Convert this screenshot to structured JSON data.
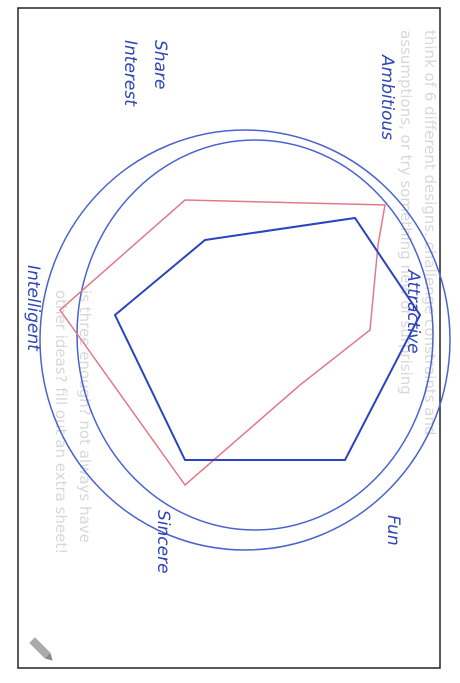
{
  "prompt": {
    "lines": [
      "think of 6 different designs. challenge constraints and",
      "assumptions, or try something new or surprising",
      "is three enough? not always have",
      "other ideas? fill out an extra sheet!"
    ]
  },
  "labels": {
    "attractive": "Attractive",
    "ambitious": "Ambitious",
    "fun": "Fun",
    "sincere": "Sincere",
    "intelligent": "Intelligent",
    "share": "Share",
    "interest": "Interest"
  }
}
